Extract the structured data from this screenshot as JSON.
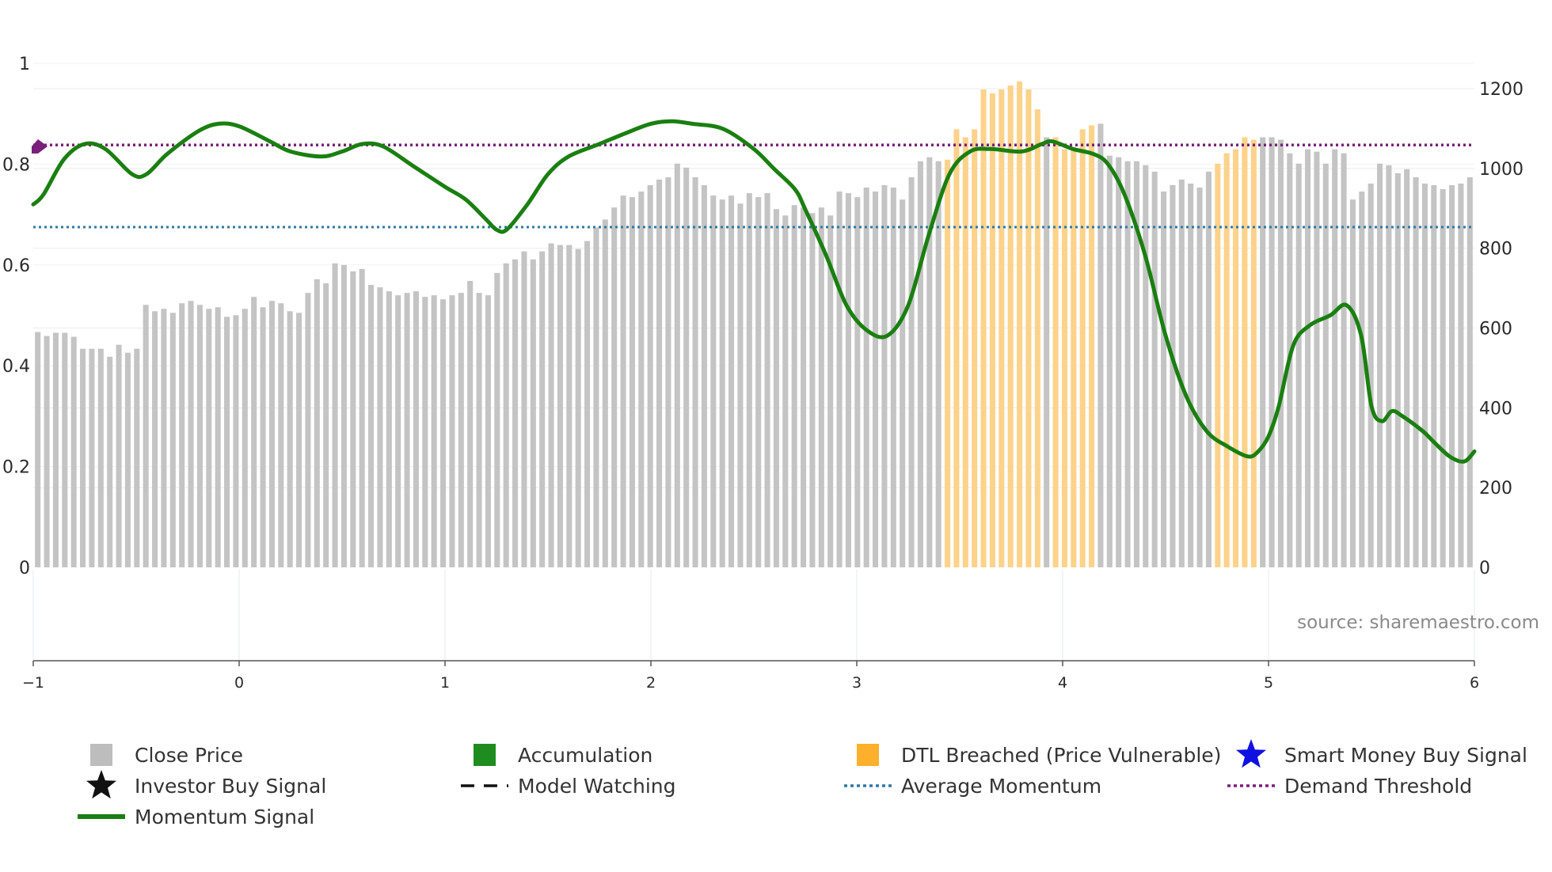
{
  "chart_data": {
    "type": "bar",
    "title": "",
    "source": "source: sharemaestro.com",
    "left_axis": {
      "ylim": [
        0,
        1.0
      ],
      "ticks": [
        0,
        0.2,
        0.4,
        0.6,
        0.8,
        1
      ],
      "tick_labels": [
        "0",
        "0.2",
        "0.4",
        "0.6",
        "0.8",
        "1"
      ]
    },
    "right_axis": {
      "ylim": [
        0,
        1200
      ],
      "ticks": [
        0,
        200,
        400,
        600,
        800,
        1000,
        1200
      ],
      "tick_labels": [
        "0",
        "200",
        "400",
        "600",
        "800",
        "1000",
        "1200"
      ]
    },
    "x_axis": {
      "xlim": [
        -1,
        6
      ],
      "ticks": [
        -1,
        0,
        1,
        2,
        3,
        4,
        5,
        6
      ],
      "tick_labels": [
        "−1",
        "0",
        "1",
        "2",
        "3",
        "4",
        "5",
        "6"
      ]
    },
    "close_price": [
      590,
      580,
      588,
      588,
      578,
      548,
      548,
      548,
      528,
      558,
      538,
      548,
      658,
      642,
      648,
      638,
      662,
      668,
      658,
      648,
      652,
      628,
      632,
      648,
      678,
      652,
      668,
      662,
      642,
      638,
      688,
      722,
      712,
      762,
      758,
      742,
      748,
      708,
      702,
      692,
      682,
      688,
      692,
      678,
      682,
      672,
      682,
      688,
      718,
      688,
      682,
      738,
      762,
      772,
      792,
      772,
      792,
      812,
      808,
      808,
      798,
      818,
      852,
      872,
      902,
      932,
      928,
      942,
      958,
      972,
      978,
      1012,
      1002,
      978,
      958,
      932,
      922,
      932,
      912,
      938,
      928,
      938,
      898,
      882,
      908,
      902,
      888,
      902,
      882,
      942,
      938,
      928,
      952,
      942,
      958,
      952,
      922,
      978,
      1018,
      1028,
      1018,
      1022,
      1098,
      1078,
      1098,
      1198,
      1188,
      1198,
      1208,
      1218,
      1198,
      1148,
      1078,
      1078,
      1048,
      1048,
      1098,
      1108,
      1112,
      1032,
      1028,
      1018,
      1018,
      1008,
      992,
      942,
      958,
      972,
      962,
      952,
      992,
      1012,
      1038,
      1048,
      1078,
      1072,
      1078,
      1078,
      1072,
      1038,
      1012,
      1048,
      1042,
      1012,
      1048,
      1038,
      922,
      942,
      962,
      1012,
      1008,
      988,
      998,
      978,
      962,
      958,
      948,
      958,
      962,
      978
    ],
    "price_highlight": {
      "color": "#fdd28a",
      "ranges": [
        [
          101,
          111
        ],
        [
          113,
          117
        ],
        [
          131,
          135
        ]
      ]
    },
    "momentum_signal": {
      "name": "Momentum Signal",
      "color": "#1a7f10",
      "points": [
        [
          -1,
          0.72
        ],
        [
          -0.95,
          0.74
        ],
        [
          -0.85,
          0.81
        ],
        [
          -0.75,
          0.84
        ],
        [
          -0.65,
          0.83
        ],
        [
          -0.52,
          0.78
        ],
        [
          -0.45,
          0.78
        ],
        [
          -0.35,
          0.82
        ],
        [
          -0.2,
          0.865
        ],
        [
          -0.1,
          0.88
        ],
        [
          0.0,
          0.875
        ],
        [
          0.15,
          0.845
        ],
        [
          0.25,
          0.825
        ],
        [
          0.4,
          0.815
        ],
        [
          0.5,
          0.825
        ],
        [
          0.6,
          0.84
        ],
        [
          0.7,
          0.835
        ],
        [
          0.85,
          0.795
        ],
        [
          1.0,
          0.755
        ],
        [
          1.1,
          0.73
        ],
        [
          1.2,
          0.69
        ],
        [
          1.25,
          0.67
        ],
        [
          1.3,
          0.67
        ],
        [
          1.4,
          0.72
        ],
        [
          1.5,
          0.78
        ],
        [
          1.6,
          0.815
        ],
        [
          1.75,
          0.84
        ],
        [
          1.9,
          0.865
        ],
        [
          2.0,
          0.88
        ],
        [
          2.1,
          0.885
        ],
        [
          2.2,
          0.88
        ],
        [
          2.35,
          0.87
        ],
        [
          2.5,
          0.83
        ],
        [
          2.6,
          0.79
        ],
        [
          2.7,
          0.75
        ],
        [
          2.75,
          0.71
        ],
        [
          2.85,
          0.62
        ],
        [
          2.95,
          0.52
        ],
        [
          3.05,
          0.47
        ],
        [
          3.15,
          0.46
        ],
        [
          3.25,
          0.52
        ],
        [
          3.35,
          0.66
        ],
        [
          3.45,
          0.78
        ],
        [
          3.55,
          0.825
        ],
        [
          3.65,
          0.83
        ],
        [
          3.8,
          0.825
        ],
        [
          3.9,
          0.84
        ],
        [
          3.95,
          0.845
        ],
        [
          4.05,
          0.83
        ],
        [
          4.15,
          0.82
        ],
        [
          4.22,
          0.8
        ],
        [
          4.3,
          0.74
        ],
        [
          4.4,
          0.62
        ],
        [
          4.5,
          0.46
        ],
        [
          4.6,
          0.34
        ],
        [
          4.7,
          0.27
        ],
        [
          4.8,
          0.24
        ],
        [
          4.9,
          0.22
        ],
        [
          4.95,
          0.23
        ],
        [
          5.0,
          0.26
        ],
        [
          5.05,
          0.32
        ],
        [
          5.12,
          0.44
        ],
        [
          5.2,
          0.48
        ],
        [
          5.3,
          0.5
        ],
        [
          5.38,
          0.52
        ],
        [
          5.45,
          0.46
        ],
        [
          5.5,
          0.32
        ],
        [
          5.55,
          0.29
        ],
        [
          5.6,
          0.31
        ],
        [
          5.65,
          0.3
        ],
        [
          5.75,
          0.27
        ],
        [
          5.8,
          0.25
        ],
        [
          5.88,
          0.22
        ],
        [
          5.95,
          0.21
        ],
        [
          6.0,
          0.23
        ]
      ]
    },
    "average_momentum": {
      "name": "Average Momentum",
      "value": 0.675,
      "color": "#2f78a6"
    },
    "demand_threshold": {
      "name": "Demand Threshold",
      "value": 0.838,
      "color": "#7a1f7a"
    },
    "legend": [
      {
        "label": "Close Price",
        "swatch": "square",
        "color": "#bdbdbd"
      },
      {
        "label": "Accumulation",
        "swatch": "square",
        "color": "#1e8c1e"
      },
      {
        "label": "DTL Breached (Price Vulnerable)",
        "swatch": "square",
        "color": "#fdb02b"
      },
      {
        "label": "Smart Money Buy Signal",
        "swatch": "star",
        "color": "#1010e0"
      },
      {
        "label": "Investor Buy Signal",
        "swatch": "star",
        "color": "#111111"
      },
      {
        "label": "Model Watching",
        "swatch": "dash",
        "color": "#111111"
      },
      {
        "label": "Average Momentum",
        "swatch": "dot",
        "color": "#2f78a6"
      },
      {
        "label": "Demand Threshold",
        "swatch": "dot",
        "color": "#7a1f7a"
      },
      {
        "label": "Momentum Signal",
        "swatch": "line",
        "color": "#1a7f10"
      }
    ]
  }
}
